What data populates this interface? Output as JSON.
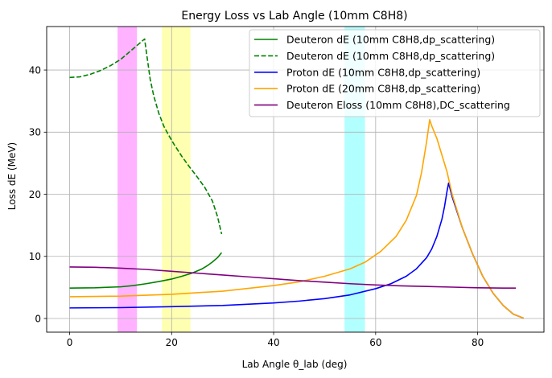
{
  "chart_data": {
    "type": "line",
    "title": "Energy Loss vs Lab Angle (10mm C8H8)",
    "xlabel": "Lab Angle θ_lab (deg)",
    "ylabel": "Loss dE (MeV)",
    "xlim": [
      -4.5,
      93
    ],
    "ylim": [
      -2.2,
      47
    ],
    "xticks": [
      0,
      20,
      40,
      60,
      80
    ],
    "yticks": [
      0,
      10,
      20,
      30,
      40
    ],
    "grid": true,
    "legend_position": "top-right",
    "bands": [
      {
        "from": 9.4,
        "to": 13.2,
        "color": "#ff00ff",
        "opacity": 0.3
      },
      {
        "from": 18.1,
        "to": 23.7,
        "color": "#ffff00",
        "opacity": 0.3
      },
      {
        "from": 53.9,
        "to": 57.9,
        "color": "#00ffff",
        "opacity": 0.3
      }
    ],
    "series": [
      {
        "name": "Deuteron dE (10mm C8H8,dp_scattering)",
        "color": "#008000",
        "dash": "solid",
        "x": [
          0,
          5,
          10,
          12.5,
          15,
          17.5,
          20,
          22,
          24,
          26,
          27,
          28,
          29,
          29.8
        ],
        "y": [
          4.9,
          4.95,
          5.1,
          5.3,
          5.6,
          5.95,
          6.35,
          6.8,
          7.3,
          8.0,
          8.5,
          9.1,
          9.8,
          10.6
        ]
      },
      {
        "name": "Deuteron dE (10mm C8H8,dp_scattering)",
        "color": "#008000",
        "dash": "dashed",
        "x": [
          0,
          2,
          4,
          6,
          8,
          10,
          11,
          12,
          13,
          14,
          14.7,
          15.2,
          15.8,
          16.5,
          17.5,
          18.5,
          19.5,
          20.5,
          22,
          23.5,
          25,
          26.5,
          28,
          29,
          29.8
        ],
        "y": [
          38.8,
          38.9,
          39.3,
          39.9,
          40.7,
          41.7,
          42.4,
          43.1,
          43.8,
          44.5,
          45.0,
          42.0,
          38.5,
          35.8,
          33.0,
          30.9,
          29.4,
          28.0,
          26.1,
          24.4,
          22.8,
          21.1,
          18.9,
          16.4,
          13.6
        ]
      },
      {
        "name": "Proton dE (10mm C8H8,dp_scattering)",
        "color": "#0000ff",
        "dash": "solid",
        "x": [
          0,
          10,
          20,
          30,
          40,
          45,
          50,
          55,
          60,
          63,
          66,
          68,
          70,
          71,
          72,
          73,
          73.5,
          74,
          74.3,
          75,
          77,
          79,
          81,
          83,
          85,
          87,
          89
        ],
        "y": [
          1.7,
          1.75,
          1.9,
          2.1,
          2.5,
          2.8,
          3.2,
          3.8,
          4.8,
          5.6,
          6.8,
          8.0,
          9.8,
          11.2,
          13.2,
          16.0,
          18.0,
          20.5,
          21.8,
          19.6,
          14.6,
          10.4,
          6.8,
          4.1,
          2.1,
          0.7,
          0.05
        ]
      },
      {
        "name": "Proton dE (20mm C8H8,dp_scattering)",
        "color": "#ffa500",
        "dash": "solid",
        "x": [
          0,
          10,
          20,
          30,
          40,
          45,
          50,
          55,
          58,
          61,
          64,
          66,
          68,
          69,
          70,
          70.6,
          71,
          72,
          73,
          74,
          75,
          77,
          79,
          81,
          83,
          85,
          87,
          89
        ],
        "y": [
          3.5,
          3.6,
          3.9,
          4.4,
          5.3,
          5.9,
          6.8,
          8.0,
          9.1,
          10.8,
          13.2,
          15.8,
          19.8,
          23.5,
          28.5,
          32.0,
          31.0,
          29.0,
          26.3,
          23.6,
          20.0,
          14.6,
          10.4,
          6.8,
          4.1,
          2.1,
          0.7,
          0.05
        ]
      },
      {
        "name": "Deuteron Eloss (10mm C8H8),DC_scattering",
        "color": "#800080",
        "dash": "solid",
        "x": [
          0,
          5,
          10,
          15,
          20,
          25,
          30,
          35,
          40,
          45,
          50,
          55,
          60,
          65,
          70,
          75,
          80,
          85,
          87.5
        ],
        "y": [
          8.3,
          8.25,
          8.1,
          7.9,
          7.6,
          7.3,
          7.0,
          6.7,
          6.4,
          6.1,
          5.85,
          5.6,
          5.4,
          5.25,
          5.15,
          5.05,
          4.95,
          4.9,
          4.9
        ]
      }
    ]
  }
}
